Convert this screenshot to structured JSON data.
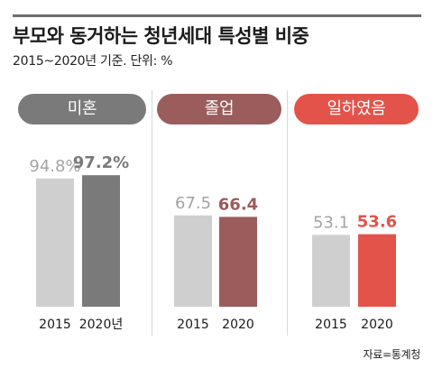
{
  "header": {
    "title": "부모와 동거하는 청년세대 특성별 비중",
    "subtitle": "2015~2020년 기준. 단위: %"
  },
  "source": "자료=통계청",
  "colors": {
    "bar_2015": "#cfcfcf",
    "value_2015": "#a4a4a4",
    "group_1": "#7a7a7a",
    "group_2": "#9b5c5c",
    "group_3": "#e3534a"
  },
  "chart_data": [
    {
      "type": "bar",
      "title": "미혼",
      "categories": [
        "2015",
        "2020년"
      ],
      "values": [
        94.8,
        97.2
      ],
      "value_labels": [
        "94.8%",
        "97.2%"
      ]
    },
    {
      "type": "bar",
      "title": "졸업",
      "categories": [
        "2015",
        "2020"
      ],
      "values": [
        67.5,
        66.4
      ],
      "value_labels": [
        "67.5",
        "66.4"
      ]
    },
    {
      "type": "bar",
      "title": "일하였음",
      "categories": [
        "2015",
        "2020"
      ],
      "values": [
        53.1,
        53.6
      ],
      "value_labels": [
        "53.1",
        "53.6"
      ]
    }
  ]
}
